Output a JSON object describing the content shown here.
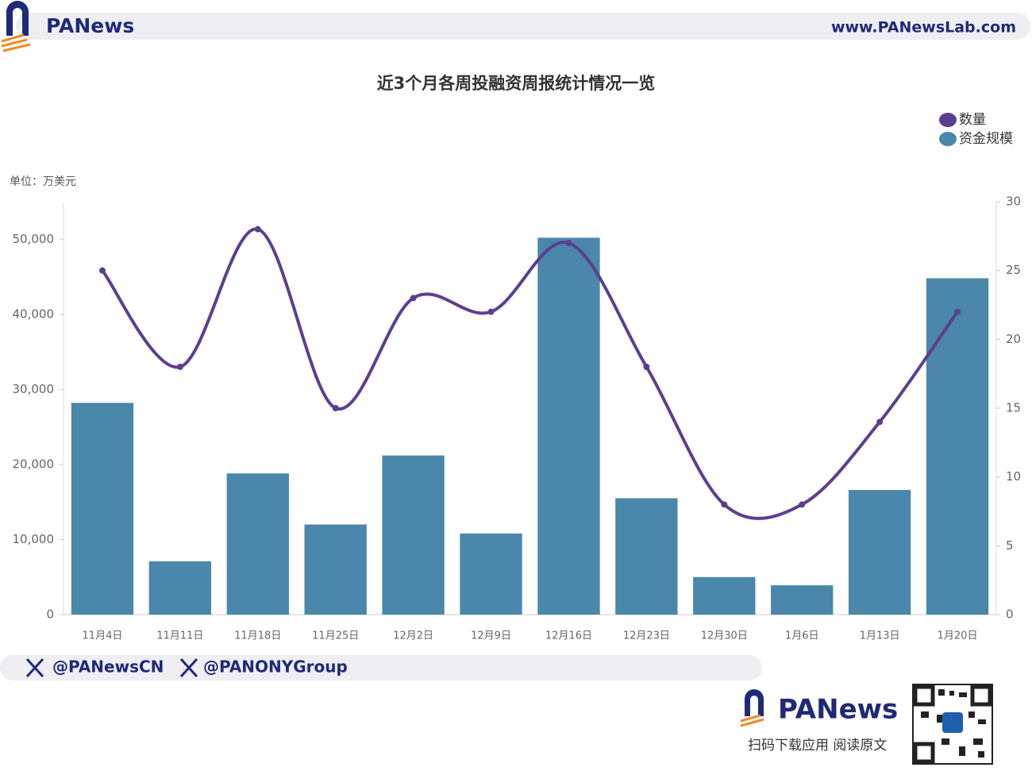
{
  "header": {
    "brand": "PANews",
    "url": "www.PANewsLab.com"
  },
  "chart_data": {
    "type": "bar",
    "title": "近3个月各周投融资周报统计情况一览",
    "unit_label": "单位：万美元",
    "categories": [
      "11月4日",
      "11月11日",
      "11月18日",
      "11月25日",
      "12月2日",
      "12月9日",
      "12月16日",
      "12月23日",
      "12月30日",
      "1月6日",
      "1月13日",
      "1月20日"
    ],
    "series": [
      {
        "name": "数量",
        "type": "line",
        "axis": "y2",
        "color": "#5b3f8f",
        "values": [
          25,
          18,
          28,
          15,
          23,
          22,
          27,
          18,
          8,
          8,
          14,
          22
        ]
      },
      {
        "name": "资金规模",
        "type": "bar",
        "color": "#4a87aa",
        "values": [
          28200,
          7100,
          18800,
          12000,
          21200,
          10800,
          50200,
          15500,
          5000,
          3900,
          16600,
          44800
        ]
      }
    ],
    "ylim": [
      0,
      55000
    ],
    "yticks": [
      0,
      {
        "value": 10000,
        "label": "10,000"
      },
      {
        "value": 20000,
        "label": "20,000"
      },
      {
        "value": 30000,
        "label": "30,000"
      },
      {
        "value": 40000,
        "label": "40,000"
      },
      {
        "value": 50000,
        "label": "50,000"
      }
    ],
    "y2lim": [
      0,
      30
    ],
    "y2ticks": [
      0,
      5,
      10,
      15,
      20,
      25,
      30
    ],
    "legend": "top-right"
  },
  "footer": {
    "handles": [
      "@PANewsCN",
      "@PANONYGroup"
    ],
    "brand": "PANews",
    "caption": "扫码下载应用 阅读原文"
  }
}
